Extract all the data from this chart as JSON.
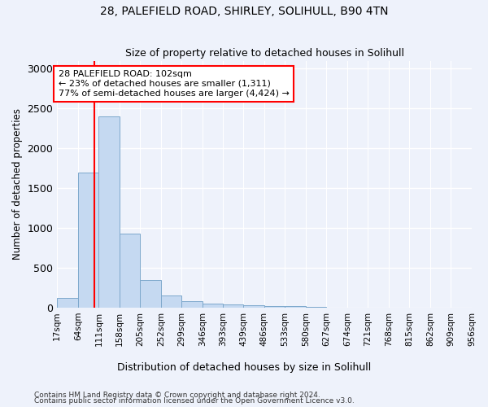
{
  "title1": "28, PALEFIELD ROAD, SHIRLEY, SOLIHULL, B90 4TN",
  "title2": "Size of property relative to detached houses in Solihull",
  "xlabel": "Distribution of detached houses by size in Solihull",
  "ylabel": "Number of detached properties",
  "footer1": "Contains HM Land Registry data © Crown copyright and database right 2024.",
  "footer2": "Contains public sector information licensed under the Open Government Licence v3.0.",
  "bin_edges": [
    17,
    64,
    111,
    158,
    205,
    252,
    299,
    346,
    393,
    439,
    486,
    533,
    580,
    627,
    674,
    721,
    768,
    815,
    862,
    909,
    956
  ],
  "bar_heights": [
    120,
    1700,
    2400,
    930,
    350,
    155,
    85,
    55,
    40,
    30,
    20,
    20,
    10,
    5,
    5,
    5,
    5,
    5,
    5,
    5
  ],
  "bar_color": "#c5d9f1",
  "bar_edge_color": "#7da8cc",
  "property_size": 102,
  "ann_line1": "28 PALEFIELD ROAD: 102sqm",
  "ann_line2": "← 23% of detached houses are smaller (1,311)",
  "ann_line3": "77% of semi-detached houses are larger (4,424) →",
  "vline_color": "red",
  "ylim": [
    0,
    3100
  ],
  "yticks": [
    0,
    500,
    1000,
    1500,
    2000,
    2500,
    3000
  ],
  "background_color": "#eef2fb",
  "grid_color": "#ffffff",
  "tick_label_fontsize": 7.5
}
